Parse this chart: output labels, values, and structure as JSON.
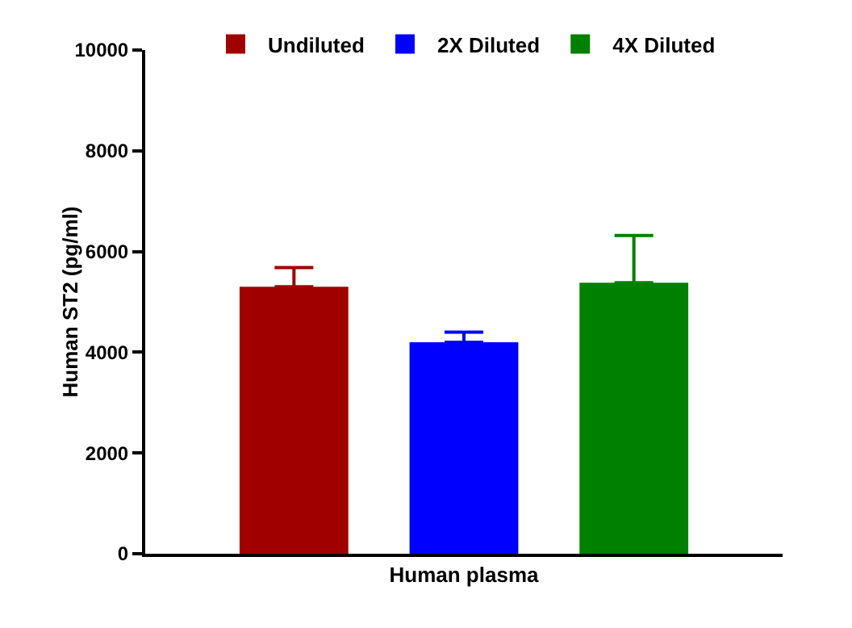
{
  "chart_data": {
    "type": "bar",
    "ylabel": "Human ST2 (pg/ml)",
    "categories": [
      "Human plasma"
    ],
    "series": [
      {
        "name": "Undiluted",
        "color": "#a00000",
        "values": [
          5300
        ],
        "errors": [
          [
            5300,
            5680
          ]
        ]
      },
      {
        "name": "2X Diluted",
        "color": "#0000ff",
        "values": [
          4200
        ],
        "errors": [
          [
            4200,
            4400
          ]
        ]
      },
      {
        "name": "4X Diluted",
        "color": "#008000",
        "values": [
          5380
        ],
        "errors": [
          [
            5380,
            6320
          ]
        ]
      }
    ],
    "ylim": [
      0,
      10000
    ],
    "yticks": [
      0,
      2000,
      4000,
      6000,
      8000,
      10000
    ],
    "grid": false,
    "legend": "top"
  }
}
